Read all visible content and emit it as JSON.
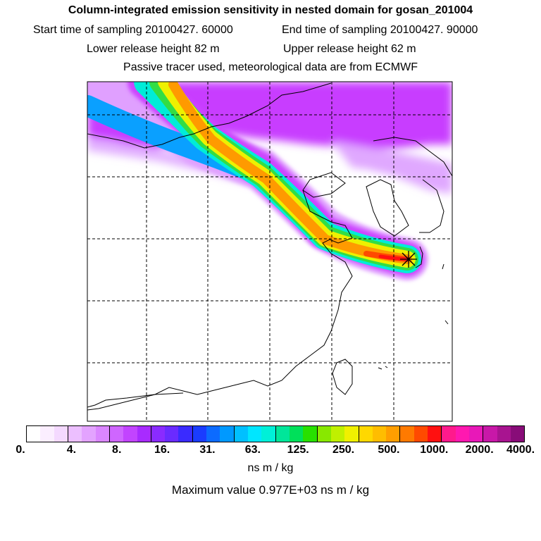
{
  "header": {
    "title": "Column-integrated emission sensitivity in nested domain for gosan_201004",
    "start_label": "Start time of sampling 20100427. 60000",
    "end_label": "End time of sampling 20100427. 90000",
    "lower_label": "Lower release height   82 m",
    "upper_label": "Upper release height   62 m",
    "note": "Passive tracer used, meteorological data are from ECMWF"
  },
  "map": {
    "receptor_marker": "asterisk-icon",
    "palette": {
      "plume_core": "#ff0000",
      "plume_orange": "#ff9900",
      "plume_yellow": "#ffee00",
      "plume_green": "#33dd33",
      "plume_cyan": "#00eedd",
      "background_violet": "#cc33ff",
      "background_pink": "#e6aaff"
    }
  },
  "colorbar": {
    "colors": [
      "#ffffff",
      "#fbeeff",
      "#f4d9ff",
      "#ecbfff",
      "#e3a3ff",
      "#da86ff",
      "#cf66ff",
      "#c244ff",
      "#a82bff",
      "#8a2bff",
      "#6a2bff",
      "#3a2bff",
      "#1a3cff",
      "#0c6bff",
      "#0099ff",
      "#00c0ff",
      "#00e6ff",
      "#00f0d8",
      "#00e69a",
      "#00e05a",
      "#28e000",
      "#88e800",
      "#c0f000",
      "#f0f000",
      "#ffd800",
      "#ffbd00",
      "#ff9e00",
      "#ff7a00",
      "#ff4a00",
      "#ff1010",
      "#ff1a8c",
      "#ff18b0",
      "#e818b8",
      "#c818a8",
      "#a81490",
      "#880c78"
    ],
    "labels": [
      "0.",
      "4.",
      "8.",
      "16.",
      "31.",
      "63.",
      "125.",
      "250.",
      "500.",
      "1000.",
      "2000.",
      "4000."
    ],
    "units": "ns m / kg",
    "max_text": "Maximum value  0.977E+03 ns m / kg"
  }
}
